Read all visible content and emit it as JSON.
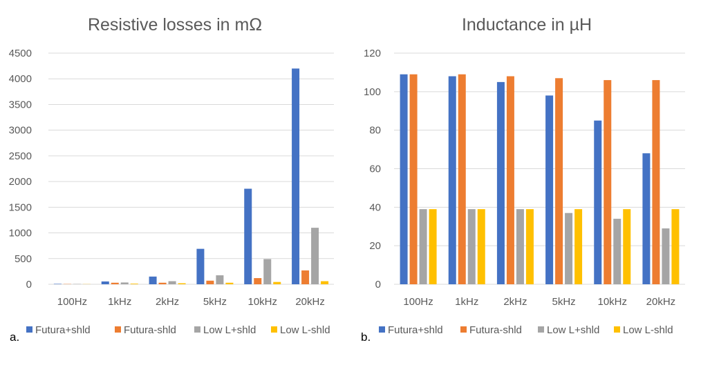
{
  "chart_data": [
    {
      "type": "bar",
      "panel_label": "a.",
      "title": "Resistive losses in mΩ",
      "categories": [
        "100Hz",
        "1kHz",
        "2kHz",
        "5kHz",
        "10kHz",
        "20kHz"
      ],
      "ylim": [
        0,
        4500
      ],
      "yticks": [
        0,
        500,
        1000,
        1500,
        2000,
        2500,
        3000,
        3500,
        4000,
        4500
      ],
      "grid": true,
      "legend_position": "bottom",
      "series": [
        {
          "name": "Futura+shld",
          "color": "#4472c4",
          "values": [
            8,
            55,
            150,
            690,
            1860,
            4200
          ]
        },
        {
          "name": "Futura-shld",
          "color": "#ed7d31",
          "values": [
            5,
            30,
            30,
            70,
            120,
            270
          ]
        },
        {
          "name": "Low L+shld",
          "color": "#a5a5a5",
          "values": [
            6,
            35,
            60,
            175,
            490,
            1100
          ]
        },
        {
          "name": "Low L-shld",
          "color": "#ffc000",
          "values": [
            3,
            12,
            20,
            30,
            45,
            60
          ]
        }
      ]
    },
    {
      "type": "bar",
      "panel_label": "b.",
      "title": "Inductance in µH",
      "categories": [
        "100Hz",
        "1kHz",
        "2kHz",
        "5kHz",
        "10kHz",
        "20kHz"
      ],
      "ylim": [
        0,
        120
      ],
      "yticks": [
        0,
        20,
        40,
        60,
        80,
        100,
        120
      ],
      "grid": true,
      "legend_position": "bottom",
      "series": [
        {
          "name": "Futura+shld",
          "color": "#4472c4",
          "values": [
            109,
            108,
            105,
            98,
            85,
            68
          ]
        },
        {
          "name": "Futura-shld",
          "color": "#ed7d31",
          "values": [
            109,
            109,
            108,
            107,
            106,
            106
          ]
        },
        {
          "name": "Low L+shld",
          "color": "#a5a5a5",
          "values": [
            39,
            39,
            39,
            37,
            34,
            29
          ]
        },
        {
          "name": "Low L-shld",
          "color": "#ffc000",
          "values": [
            39,
            39,
            39,
            39,
            39,
            39
          ]
        }
      ]
    }
  ]
}
